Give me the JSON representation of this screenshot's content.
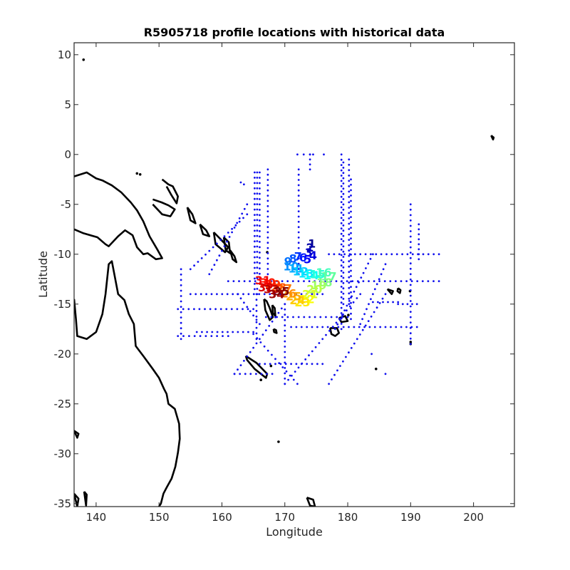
{
  "chart_data": {
    "type": "scatter",
    "title": "R5905718 profile locations with historical data",
    "xlabel": "Longitude",
    "ylabel": "Latitude",
    "xlim": [
      136.5,
      206.5
    ],
    "ylim": [
      -35.3,
      11.2
    ],
    "xticks": [
      140,
      150,
      160,
      170,
      180,
      190,
      200
    ],
    "yticks": [
      10,
      5,
      0,
      -5,
      -10,
      -15,
      -20,
      -25,
      -30,
      -35
    ],
    "grid": false,
    "colors": {
      "historical": "#1010ee",
      "coastline": "#000000",
      "axis": "#262626",
      "profile_colormap": [
        "#00008f",
        "#0000ff",
        "#0080ff",
        "#00ffff",
        "#80ff80",
        "#ffff00",
        "#ff8000",
        "#ff0000",
        "#800000"
      ]
    },
    "historical_tracks": [
      {
        "lon": [
          165.2,
          165.2
        ],
        "lat": [
          -1.8,
          -13.5
        ]
      },
      {
        "lon": [
          165.6,
          165.6
        ],
        "lat": [
          -1.8,
          -14.0
        ]
      },
      {
        "lon": [
          166.0,
          166.0
        ],
        "lat": [
          -1.8,
          -12.5
        ]
      },
      {
        "lon": [
          167.3,
          167.3
        ],
        "lat": [
          -1.5,
          -12.0
        ]
      },
      {
        "lon": [
          172.2,
          172.2
        ],
        "lat": [
          -1.5,
          -12.0
        ]
      },
      {
        "lon": [
          179.0,
          179.0
        ],
        "lat": [
          0.0,
          -17.5
        ]
      },
      {
        "lon": [
          179.3,
          179.3
        ],
        "lat": [
          -0.8,
          -15.0
        ]
      },
      {
        "lon": [
          180.2,
          180.2
        ],
        "lat": [
          -0.5,
          -15.0
        ]
      },
      {
        "lon": [
          180.5,
          180.5
        ],
        "lat": [
          -2.5,
          -16.5
        ]
      },
      {
        "lon": [
          190.0,
          190.0
        ],
        "lat": [
          -5.0,
          -19.0
        ]
      },
      {
        "lon": [
          191.3,
          191.3
        ],
        "lat": [
          -7.0,
          -10.5
        ]
      },
      {
        "lon": [
          161.0,
          194.5
        ],
        "lat": [
          -12.7,
          -12.7
        ]
      },
      {
        "lon": [
          155.0,
          176.0
        ],
        "lat": [
          -14.0,
          -14.0
        ]
      },
      {
        "lon": [
          153.0,
          165.0
        ],
        "lat": [
          -15.5,
          -15.5
        ]
      },
      {
        "lon": [
          167.0,
          180.0
        ],
        "lat": [
          -16.3,
          -16.3
        ]
      },
      {
        "lon": [
          171.0,
          191.0
        ],
        "lat": [
          -17.3,
          -17.3
        ]
      },
      {
        "lon": [
          156.0,
          165.0
        ],
        "lat": [
          -17.8,
          -17.8
        ]
      },
      {
        "lon": [
          153.0,
          161.0
        ],
        "lat": [
          -18.2,
          -18.2
        ]
      },
      {
        "lon": [
          166.0,
          176.0
        ],
        "lat": [
          -21.0,
          -21.0
        ]
      },
      {
        "lon": [
          162.0,
          168.0
        ],
        "lat": [
          -22.0,
          -22.0
        ]
      },
      {
        "lon": [
          177.0,
          194.5
        ],
        "lat": [
          -10.0,
          -10.0
        ]
      },
      {
        "lon": [
          184.0,
          188.0
        ],
        "lat": [
          -14.8,
          -14.8
        ]
      },
      {
        "lon": [
          188.0,
          191.0
        ],
        "lat": [
          -15.0,
          -15.0
        ]
      },
      {
        "lon": [
          153.5,
          153.5
        ],
        "lat": [
          -11.5,
          -18.5
        ]
      },
      {
        "lon": [
          155.0,
          164.0
        ],
        "lat": [
          -11.5,
          -6.0
        ]
      },
      {
        "lon": [
          158.0,
          164.0
        ],
        "lat": [
          -12.0,
          -5.0
        ]
      },
      {
        "lon": [
          162.0,
          170.0
        ],
        "lat": [
          -22.0,
          -15.0
        ]
      },
      {
        "lon": [
          170.0,
          182.0
        ],
        "lat": [
          -23.0,
          -14.0
        ]
      },
      {
        "lon": [
          177.0,
          186.0
        ],
        "lat": [
          -23.0,
          -14.0
        ]
      },
      {
        "lon": [
          178.0,
          184.0
        ],
        "lat": [
          -17.5,
          -10.0
        ]
      },
      {
        "lon": [
          182.0,
          186.0
        ],
        "lat": [
          -17.0,
          -11.0
        ]
      },
      {
        "lon": [
          165.0,
          172.0
        ],
        "lat": [
          -18.0,
          -23.0
        ]
      },
      {
        "lon": [
          165.5,
          165.5
        ],
        "lat": [
          -14.0,
          -18.5
        ]
      },
      {
        "lon": [
          170.0,
          170.0
        ],
        "lat": [
          -15.0,
          -23.0
        ]
      },
      {
        "lon": [
          162.5,
          166.0
        ],
        "lat": [
          -14.0,
          -17.0
        ]
      },
      {
        "lon": [
          174.0,
          174.0
        ],
        "lat": [
          0.0,
          -1.5
        ]
      }
    ],
    "historical_points": [
      {
        "lon": 172.0,
        "lat": 0.0
      },
      {
        "lon": 173.0,
        "lat": 0.0
      },
      {
        "lon": 174.0,
        "lat": 0.0
      },
      {
        "lon": 174.5,
        "lat": 0.0
      },
      {
        "lon": 176.2,
        "lat": 0.0
      },
      {
        "lon": 163.0,
        "lat": -2.8
      },
      {
        "lon": 163.5,
        "lat": -3.0
      },
      {
        "lon": 186.0,
        "lat": -22.0
      },
      {
        "lon": 183.8,
        "lat": -20.0
      }
    ],
    "coastlines": [
      {
        "lon": [
          136.5,
          138.5,
          140.0,
          141.0,
          142.5,
          144.0,
          145.5,
          146.5,
          147.5,
          148.5,
          149.8,
          150.5,
          149.5,
          148.2,
          147.5,
          146.5,
          145.8,
          144.6,
          143.5,
          142.0,
          141.5,
          140.2,
          138.0,
          136.5
        ],
        "lat": [
          -2.2,
          -1.8,
          -2.4,
          -2.6,
          -3.1,
          -3.8,
          -4.8,
          -5.6,
          -6.7,
          -8.2,
          -9.6,
          -10.4,
          -10.5,
          -9.9,
          -10.0,
          -9.3,
          -8.1,
          -7.6,
          -8.2,
          -9.2,
          -9.0,
          -8.3,
          -7.9,
          -7.5
        ]
      },
      {
        "lon": [
          136.5,
          136.8,
          137.0,
          138.5,
          140.0,
          141.0,
          141.5,
          142.0,
          142.5,
          143.5,
          144.5,
          145.2,
          146.0,
          146.3,
          147.5,
          149.0,
          150.0,
          150.8,
          151.2,
          151.5,
          152.5,
          153.2,
          153.3,
          153.0,
          152.6,
          152.0,
          151.2,
          150.7,
          150.3,
          149.8
        ],
        "lat": [
          -14.5,
          -16.5,
          -18.2,
          -18.5,
          -17.8,
          -16.0,
          -14.0,
          -11.0,
          -10.7,
          -14.0,
          -14.6,
          -16.0,
          -17.0,
          -19.2,
          -20.2,
          -21.5,
          -22.4,
          -23.5,
          -24.0,
          -25.0,
          -25.5,
          -27.0,
          -28.5,
          -29.9,
          -31.3,
          -32.5,
          -33.4,
          -34.0,
          -35.0,
          -35.5
        ]
      },
      {
        "lon": [
          149.0,
          150.4,
          151.5,
          152.5,
          151.8,
          150.5,
          149.0
        ],
        "lat": [
          -4.5,
          -4.8,
          -5.1,
          -5.5,
          -6.2,
          -6.0,
          -5.0
        ]
      },
      {
        "lon": [
          150.5,
          151.5,
          152.2,
          153.0,
          152.8,
          152.0,
          151.2
        ],
        "lat": [
          -2.5,
          -3.0,
          -3.2,
          -4.2,
          -4.9,
          -4.1,
          -3.2
        ]
      },
      {
        "lon": [
          154.5,
          155.3,
          155.8,
          155.0,
          154.5
        ],
        "lat": [
          -5.3,
          -6.0,
          -6.9,
          -6.6,
          -5.3
        ]
      },
      {
        "lon": [
          156.5,
          157.5,
          158.0,
          157.0,
          156.5
        ],
        "lat": [
          -7.0,
          -7.6,
          -8.2,
          -8.0,
          -7.0
        ]
      },
      {
        "lon": [
          158.7,
          159.8,
          161.0,
          160.5,
          159.0,
          158.7
        ],
        "lat": [
          -7.8,
          -8.5,
          -9.3,
          -9.8,
          -9.0,
          -7.8
        ]
      },
      {
        "lon": [
          160.3,
          161.1,
          161.3,
          160.6,
          160.3
        ],
        "lat": [
          -8.3,
          -8.8,
          -9.9,
          -9.6,
          -8.3
        ]
      },
      {
        "lon": [
          161.3,
          162.0,
          162.3,
          161.7,
          161.3
        ],
        "lat": [
          -9.6,
          -10.2,
          -10.8,
          -10.5,
          -9.6
        ]
      },
      {
        "lon": [
          166.7,
          167.1,
          167.6,
          168.1,
          167.6,
          166.9,
          166.7
        ],
        "lat": [
          -14.5,
          -14.7,
          -15.4,
          -16.3,
          -16.6,
          -15.6,
          -14.5
        ]
      },
      {
        "lon": [
          168.0,
          168.4,
          168.5,
          168.1,
          168.0
        ],
        "lat": [
          -15.1,
          -15.4,
          -16.2,
          -15.9,
          -15.1
        ]
      },
      {
        "lon": [
          168.2,
          168.6,
          168.7,
          168.3,
          168.2
        ],
        "lat": [
          -17.5,
          -17.6,
          -17.9,
          -17.8,
          -17.5
        ]
      },
      {
        "lon": [
          163.8,
          165.5,
          167.2,
          167.0,
          165.2,
          164.0,
          163.8
        ],
        "lat": [
          -20.2,
          -20.9,
          -22.0,
          -22.4,
          -21.5,
          -20.6,
          -20.2
        ]
      },
      {
        "lon": [
          177.2,
          178.3,
          178.6,
          178.0,
          177.4,
          177.2
        ],
        "lat": [
          -17.4,
          -17.4,
          -17.9,
          -18.2,
          -18.0,
          -17.4
        ]
      },
      {
        "lon": [
          178.6,
          179.6,
          180.0,
          179.0,
          178.6
        ],
        "lat": [
          -16.4,
          -16.2,
          -16.7,
          -16.8,
          -16.4
        ]
      },
      {
        "lon": [
          188.0,
          188.4,
          188.3,
          187.9,
          188.0
        ],
        "lat": [
          -13.4,
          -13.6,
          -13.9,
          -13.7,
          -13.4
        ]
      },
      {
        "lon": [
          186.3,
          187.2,
          187.0,
          186.3
        ],
        "lat": [
          -13.5,
          -13.7,
          -14.0,
          -13.5
        ]
      },
      {
        "lon": [
          173.5,
          174.5,
          174.8,
          174.0,
          173.5
        ],
        "lat": [
          -34.4,
          -34.6,
          -35.3,
          -35.2,
          -34.4
        ]
      },
      {
        "lon": [
          202.8,
          203.2,
          203.1,
          202.8
        ],
        "lat": [
          1.9,
          1.7,
          1.5,
          1.9
        ]
      },
      {
        "lon": [
          136.5,
          137.2,
          137.0,
          136.5
        ],
        "lat": [
          -27.7,
          -28.0,
          -28.4,
          -27.7
        ]
      },
      {
        "lon": [
          136.5,
          137.2,
          137.0,
          136.5
        ],
        "lat": [
          -34.0,
          -34.5,
          -35.3,
          -34.0
        ]
      },
      {
        "lon": [
          138.1,
          138.5,
          138.4,
          138.1
        ],
        "lat": [
          -33.8,
          -34.1,
          -35.2,
          -33.8
        ]
      }
    ],
    "small_islands": [
      {
        "lon": 138.0,
        "lat": 9.5
      },
      {
        "lon": 147.0,
        "lat": -2.0
      },
      {
        "lon": 146.5,
        "lat": -1.9
      },
      {
        "lon": 167.2,
        "lat": -9.8
      },
      {
        "lon": 169.0,
        "lat": -28.8
      },
      {
        "lon": 166.2,
        "lat": -22.6
      },
      {
        "lon": 167.8,
        "lat": -21.2
      },
      {
        "lon": 190.0,
        "lat": -18.8
      },
      {
        "lon": 190.0,
        "lat": -19.0
      },
      {
        "lon": 180.1,
        "lat": -16.1
      },
      {
        "lon": 184.5,
        "lat": -21.5
      },
      {
        "lon": 189.9,
        "lat": -13.7
      }
    ],
    "profiles": [
      {
        "n": 1,
        "lon": 174.3,
        "lat": -9.0
      },
      {
        "n": 2,
        "lon": 174.0,
        "lat": -9.4
      },
      {
        "n": 3,
        "lon": 173.8,
        "lat": -9.9
      },
      {
        "n": 4,
        "lon": 174.5,
        "lat": -10.2
      },
      {
        "n": 5,
        "lon": 173.6,
        "lat": -10.6
      },
      {
        "n": 6,
        "lon": 172.9,
        "lat": -10.4
      },
      {
        "n": 7,
        "lon": 172.1,
        "lat": -10.3
      },
      {
        "n": 8,
        "lon": 171.3,
        "lat": -10.5
      },
      {
        "n": 9,
        "lon": 170.5,
        "lat": -10.8
      },
      {
        "n": 10,
        "lon": 171.0,
        "lat": -11.3
      },
      {
        "n": 11,
        "lon": 171.8,
        "lat": -11.5
      },
      {
        "n": 12,
        "lon": 172.5,
        "lat": -11.8
      },
      {
        "n": 13,
        "lon": 173.4,
        "lat": -12.0
      },
      {
        "n": 14,
        "lon": 174.2,
        "lat": -12.2
      },
      {
        "n": 15,
        "lon": 175.2,
        "lat": -12.1
      },
      {
        "n": 16,
        "lon": 176.2,
        "lat": -11.9
      },
      {
        "n": 17,
        "lon": 177.0,
        "lat": -12.3
      },
      {
        "n": 18,
        "lon": 176.3,
        "lat": -12.9
      },
      {
        "n": 19,
        "lon": 175.4,
        "lat": -13.2
      },
      {
        "n": 20,
        "lon": 174.7,
        "lat": -13.6
      },
      {
        "n": 21,
        "lon": 174.0,
        "lat": -14.1
      },
      {
        "n": 22,
        "lon": 173.5,
        "lat": -14.6
      },
      {
        "n": 23,
        "lon": 172.8,
        "lat": -14.9
      },
      {
        "n": 24,
        "lon": 172.0,
        "lat": -14.7
      },
      {
        "n": 25,
        "lon": 171.4,
        "lat": -14.3
      },
      {
        "n": 26,
        "lon": 170.6,
        "lat": -14.0
      },
      {
        "n": 27,
        "lon": 169.9,
        "lat": -13.5
      },
      {
        "n": 28,
        "lon": 169.0,
        "lat": -13.4
      },
      {
        "n": 29,
        "lon": 168.1,
        "lat": -13.1
      },
      {
        "n": 30,
        "lon": 167.3,
        "lat": -12.9
      },
      {
        "n": 31,
        "lon": 166.5,
        "lat": -12.7
      },
      {
        "n": 32,
        "lon": 167.0,
        "lat": -13.4
      },
      {
        "n": 33,
        "lon": 167.9,
        "lat": -13.6
      },
      {
        "n": 34,
        "lon": 168.7,
        "lat": -14.1
      },
      {
        "n": 35,
        "lon": 169.5,
        "lat": -13.8
      }
    ]
  }
}
